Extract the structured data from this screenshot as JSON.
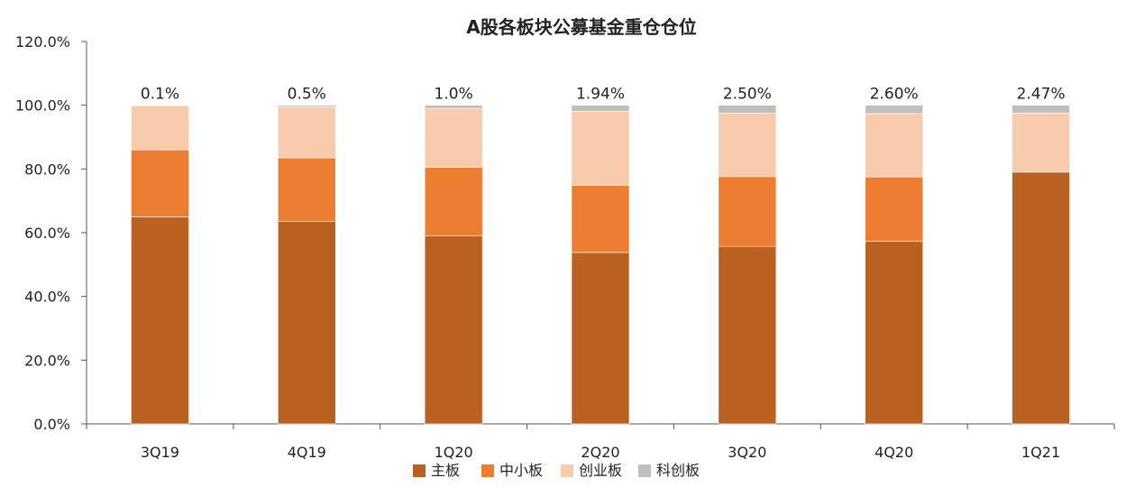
{
  "chart_data": {
    "type": "bar",
    "stacked": true,
    "title": "A股各板块公募基金重仓仓位",
    "xlabel": "",
    "ylabel": "",
    "ylim": [
      0,
      120
    ],
    "y_ticks": [
      "0.0%",
      "20.0%",
      "40.0%",
      "60.0%",
      "80.0%",
      "100.0%",
      "120.0%"
    ],
    "grid": false,
    "legend_position": "bottom",
    "categories": [
      "3Q19",
      "4Q19",
      "1Q20",
      "2Q20",
      "3Q20",
      "4Q20",
      "1Q21"
    ],
    "series": [
      {
        "name": "主板",
        "color": "#BA6122",
        "values": [
          65.0,
          63.5,
          59.0,
          53.8,
          55.7,
          57.3,
          79.0
        ]
      },
      {
        "name": "中小板",
        "color": "#ED7D31",
        "values": [
          21.0,
          20.0,
          21.5,
          21.0,
          21.9,
          20.2,
          0.0
        ]
      },
      {
        "name": "创业板",
        "color": "#F8CBAD",
        "values": [
          13.9,
          16.0,
          18.5,
          23.26,
          19.9,
          19.9,
          18.53
        ]
      },
      {
        "name": "科创板",
        "color": "#BFBFBF",
        "values": [
          0.1,
          0.5,
          1.0,
          1.94,
          2.5,
          2.6,
          2.47
        ]
      }
    ],
    "data_labels": [
      "0.1%",
      "0.5%",
      "1.0%",
      "1.94%",
      "2.50%",
      "2.60%",
      "2.47%"
    ]
  }
}
